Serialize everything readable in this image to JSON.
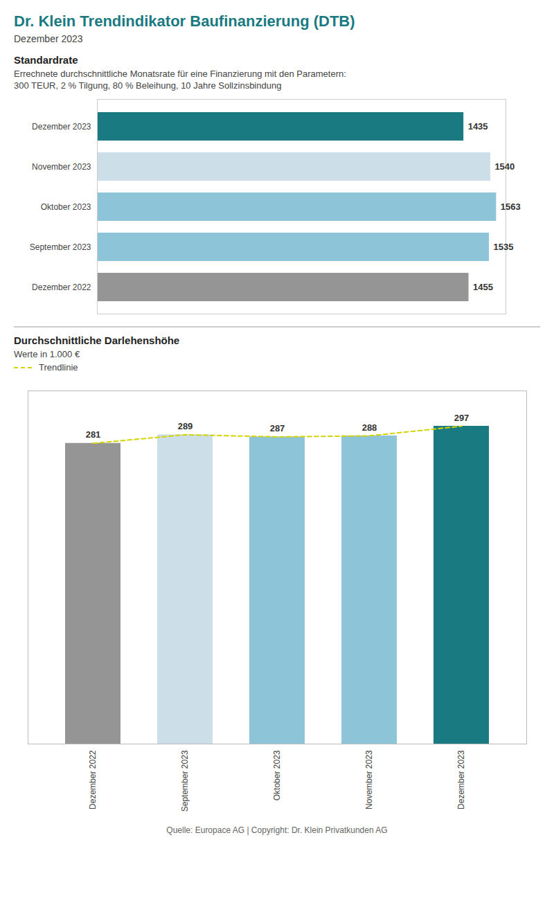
{
  "title": "Dr. Klein Trendindikator Baufinanzierung (DTB)",
  "subtitle": "Dezember 2023",
  "footer": "Quelle: Europace AG | Copyright: Dr. Klein Privatkunden AG",
  "chart_data": [
    {
      "type": "bar",
      "title": "Standardrate",
      "annotations": [
        "Errechnete durchschnittliche Monatsrate für eine Finanzierung mit den Parametern:",
        "300 TEUR, 2 % Tilgung, 80 % Beleihung, 10 Jahre Sollzinsbindung"
      ],
      "orientation": "horizontal",
      "categories": [
        "Dezember 2023",
        "November 2023",
        "Oktober 2023",
        "September 2023",
        "Dezember 2022"
      ],
      "values": [
        1435,
        1540,
        1563,
        1535,
        1455
      ],
      "colors": [
        "#1a7a82",
        "#ccdfe8",
        "#8ec4d8",
        "#8ec4d8",
        "#959595"
      ],
      "xlim": [
        0,
        1600
      ],
      "data_labels": true,
      "tick_labels": "y",
      "grid": false
    },
    {
      "type": "bar",
      "title": "Durchschnittliche Darlehenshöhe",
      "subtitle": "Werte in 1.000 €",
      "categories": [
        "Dezember 2022",
        "September 2023",
        "Oktober 2023",
        "November 2023",
        "Dezember 2023"
      ],
      "series": [
        {
          "type": "bar",
          "colors": [
            "#959595",
            "#ccdfe8",
            "#8ec4d8",
            "#8ec4d8",
            "#1a7a82"
          ],
          "values": [
            281,
            289,
            287,
            288,
            297
          ]
        },
        {
          "name": "Trendlinie",
          "type": "line",
          "color": "#d4d400",
          "line_style": "dashed",
          "values": [
            281,
            289,
            287,
            288,
            297
          ]
        }
      ],
      "ylim": [
        0,
        330
      ],
      "data_labels": true,
      "tick_labels": "x",
      "legend": "upper left",
      "grid": false
    }
  ]
}
